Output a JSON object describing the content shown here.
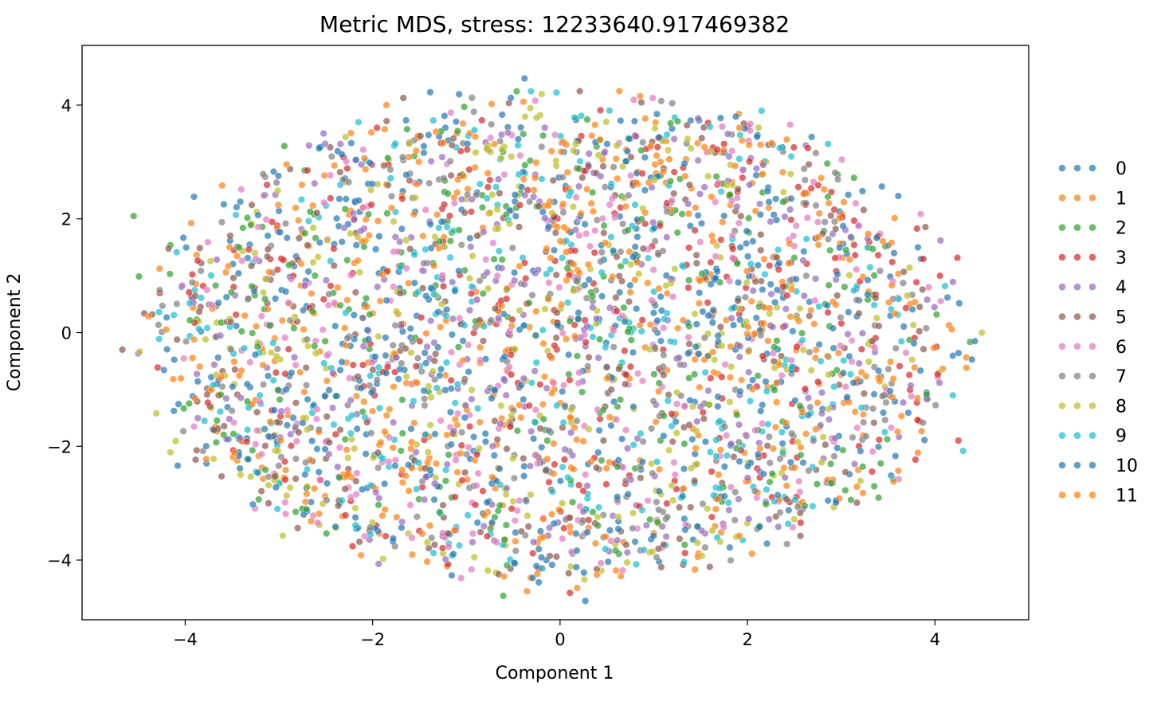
{
  "chart_data": {
    "type": "scatter",
    "title": "Metric MDS, stress: 12233640.917469382",
    "xlabel": "Component 1",
    "ylabel": "Component 2",
    "xlim": [
      -5.1,
      5.0
    ],
    "ylim": [
      -5.05,
      5.05
    ],
    "x_ticks": [
      -4,
      -2,
      0,
      2,
      4
    ],
    "y_ticks": [
      4,
      2,
      0,
      -2,
      -4
    ],
    "x_tick_labels": [
      "−4",
      "−2",
      "0",
      "2",
      "4"
    ],
    "y_tick_labels": [
      "4",
      "2",
      "0",
      "−2",
      "−4"
    ],
    "grid": false,
    "legend_position": "outside-right",
    "marker_alpha": 0.7,
    "distribution": {
      "shape": "ellipse",
      "center": [
        0,
        0
      ],
      "x_extent": [
        -4.7,
        4.5
      ],
      "y_extent": [
        -4.7,
        4.5
      ],
      "points_per_series": 280
    },
    "sample_points": [
      {
        "series": "5",
        "x": -4.67,
        "y": -0.3
      },
      {
        "series": "2",
        "x": -4.55,
        "y": 2.05
      },
      {
        "series": "0",
        "x": 0.27,
        "y": -4.72
      },
      {
        "series": "0",
        "x": -0.38,
        "y": 4.47
      },
      {
        "series": "8",
        "x": 4.5,
        "y": 0.0
      },
      {
        "series": "9",
        "x": 4.3,
        "y": -2.08
      },
      {
        "series": "3",
        "x": 4.25,
        "y": -1.9
      },
      {
        "series": "9",
        "x": 2.15,
        "y": 3.9
      }
    ],
    "series": [
      {
        "name": "0",
        "color": "#1f77b4"
      },
      {
        "name": "1",
        "color": "#ff7f0e"
      },
      {
        "name": "2",
        "color": "#2ca02c"
      },
      {
        "name": "3",
        "color": "#d62728"
      },
      {
        "name": "4",
        "color": "#9467bd"
      },
      {
        "name": "5",
        "color": "#8c564b"
      },
      {
        "name": "6",
        "color": "#e377c2"
      },
      {
        "name": "7",
        "color": "#7f7f7f"
      },
      {
        "name": "8",
        "color": "#bcbd22"
      },
      {
        "name": "9",
        "color": "#17becf"
      },
      {
        "name": "10",
        "color": "#1f77b4"
      },
      {
        "name": "11",
        "color": "#ff7f0e"
      }
    ]
  }
}
